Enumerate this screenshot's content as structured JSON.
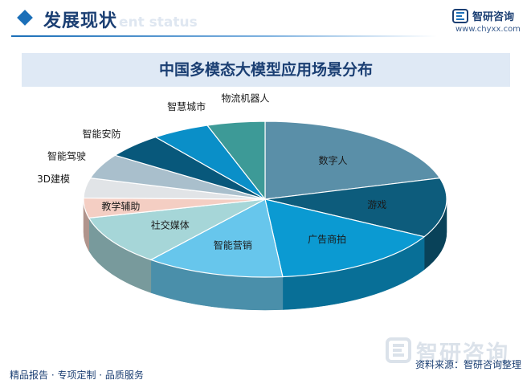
{
  "header": {
    "title": "发展现状",
    "ghost_text": "ent status"
  },
  "logo": {
    "name": "智研咨询",
    "url": "www.chyxx.com"
  },
  "watermark": {
    "text": "智研咨询"
  },
  "footer": {
    "left_text": "精品报告 · 专项定制 · 品质服务",
    "source_text": "资料来源：智研咨询整理"
  },
  "colors": {
    "brand_dark": "#1b3f73",
    "brand_accent": "#1b6fb8",
    "title_bar_bg": "#dfe9f5"
  },
  "chart_data": {
    "type": "pie",
    "title": "中国多模态大模型应用场景分布",
    "categories": [
      "数字人",
      "游戏",
      "广告商拍",
      "智能营销",
      "社交媒体",
      "教学辅助",
      "3D建模",
      "智能驾驶",
      "智能安防",
      "智慧城市",
      "物流机器人"
    ],
    "values": [
      20,
      12,
      15,
      12,
      10,
      4,
      4,
      5,
      5,
      5,
      5
    ],
    "colors": [
      "#5a8fa8",
      "#0d5c7c",
      "#0b9ad2",
      "#67c6ec",
      "#a6d6d8",
      "#f4cec3",
      "#e1e4e7",
      "#a9bfcc",
      "#08587b",
      "#0a8fc8",
      "#3d9a97"
    ],
    "style": "3d"
  }
}
